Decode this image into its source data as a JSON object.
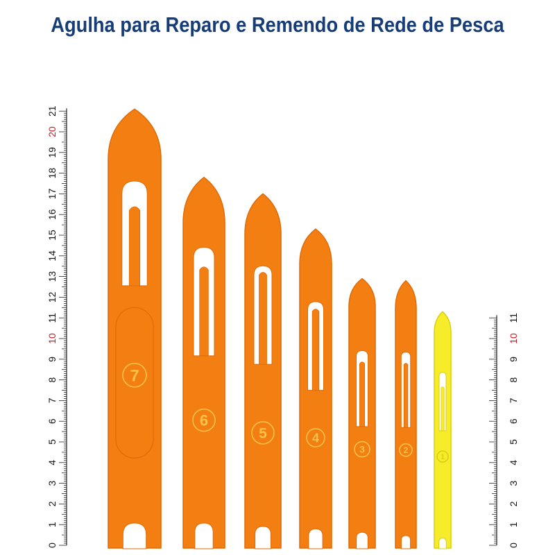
{
  "title": "Agulha para Reparo e Remendo de Rede de Pesca",
  "colors": {
    "title": "#163d78",
    "needle_orange": "#f37f13",
    "needle_orange_edge": "#e06a05",
    "needle_yellow": "#f6ec2a",
    "needle_yellow_edge": "#d9cf10",
    "ruler_text": "#111111",
    "ruler_highlight": "#d8121e"
  },
  "rulers": [
    {
      "name": "left-ruler",
      "max_cm": 21,
      "labels": [
        "0",
        "1",
        "2",
        "3",
        "4",
        "5",
        "6",
        "7",
        "8",
        "9",
        "10",
        "11",
        "12",
        "13",
        "14",
        "15",
        "16",
        "17",
        "18",
        "19",
        "20",
        "21"
      ],
      "highlight": [
        "10",
        "20"
      ]
    },
    {
      "name": "right-ruler",
      "max_cm": 11,
      "labels": [
        "0",
        "1",
        "2",
        "3",
        "4",
        "5",
        "6",
        "7",
        "8",
        "9",
        "10",
        "11"
      ],
      "highlight": [
        "10"
      ]
    }
  ],
  "needles": [
    {
      "number": "7",
      "color": "orange",
      "length_cm": 21.1
    },
    {
      "number": "6",
      "color": "orange",
      "length_cm": 17.8
    },
    {
      "number": "5",
      "color": "orange",
      "length_cm": 17.0
    },
    {
      "number": "4",
      "color": "orange",
      "length_cm": 15.3
    },
    {
      "number": "3",
      "color": "orange",
      "length_cm": 12.9
    },
    {
      "number": "2",
      "color": "orange",
      "length_cm": 12.8
    },
    {
      "number": "1",
      "color": "yellow",
      "length_cm": 11.3
    }
  ]
}
